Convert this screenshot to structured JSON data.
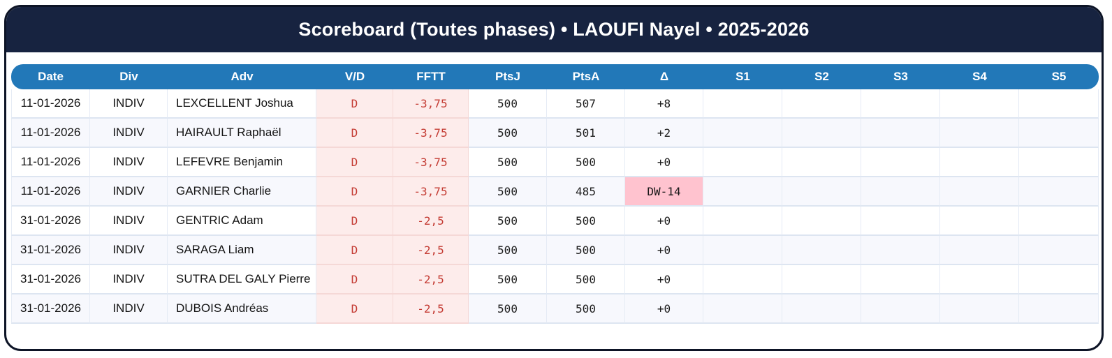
{
  "title": "Scoreboard (Toutes phases) • LAOUFI Nayel • 2025-2026",
  "table": {
    "columns": [
      "Date",
      "Div",
      "Adv",
      "V/D",
      "FFTT",
      "PtsJ",
      "PtsA",
      "Δ",
      "S1",
      "S2",
      "S3",
      "S4",
      "S5"
    ],
    "rows": [
      {
        "date": "11-01-2026",
        "div": "INDIV",
        "adv": "LEXCELLENT Joshua",
        "vd": "D",
        "fftt": "-3,75",
        "ptsj": "500",
        "ptsa": "507",
        "delta": "+8",
        "delta_highlight": false,
        "s1": "",
        "s2": "",
        "s3": "",
        "s4": "",
        "s5": ""
      },
      {
        "date": "11-01-2026",
        "div": "INDIV",
        "adv": "HAIRAULT Raphaël",
        "vd": "D",
        "fftt": "-3,75",
        "ptsj": "500",
        "ptsa": "501",
        "delta": "+2",
        "delta_highlight": false,
        "s1": "",
        "s2": "",
        "s3": "",
        "s4": "",
        "s5": ""
      },
      {
        "date": "11-01-2026",
        "div": "INDIV",
        "adv": "LEFEVRE Benjamin",
        "vd": "D",
        "fftt": "-3,75",
        "ptsj": "500",
        "ptsa": "500",
        "delta": "+0",
        "delta_highlight": false,
        "s1": "",
        "s2": "",
        "s3": "",
        "s4": "",
        "s5": ""
      },
      {
        "date": "11-01-2026",
        "div": "INDIV",
        "adv": "GARNIER Charlie",
        "vd": "D",
        "fftt": "-3,75",
        "ptsj": "500",
        "ptsa": "485",
        "delta": "DW-14",
        "delta_highlight": true,
        "s1": "",
        "s2": "",
        "s3": "",
        "s4": "",
        "s5": ""
      },
      {
        "date": "31-01-2026",
        "div": "INDIV",
        "adv": "GENTRIC Adam",
        "vd": "D",
        "fftt": "-2,5",
        "ptsj": "500",
        "ptsa": "500",
        "delta": "+0",
        "delta_highlight": false,
        "s1": "",
        "s2": "",
        "s3": "",
        "s4": "",
        "s5": ""
      },
      {
        "date": "31-01-2026",
        "div": "INDIV",
        "adv": "SARAGA Liam",
        "vd": "D",
        "fftt": "-2,5",
        "ptsj": "500",
        "ptsa": "500",
        "delta": "+0",
        "delta_highlight": false,
        "s1": "",
        "s2": "",
        "s3": "",
        "s4": "",
        "s5": ""
      },
      {
        "date": "31-01-2026",
        "div": "INDIV",
        "adv": "SUTRA DEL GALY Pierre",
        "vd": "D",
        "fftt": "-2,5",
        "ptsj": "500",
        "ptsa": "500",
        "delta": "+0",
        "delta_highlight": false,
        "s1": "",
        "s2": "",
        "s3": "",
        "s4": "",
        "s5": ""
      },
      {
        "date": "31-01-2026",
        "div": "INDIV",
        "adv": "DUBOIS Andréas",
        "vd": "D",
        "fftt": "-2,5",
        "ptsj": "500",
        "ptsa": "500",
        "delta": "+0",
        "delta_highlight": false,
        "s1": "",
        "s2": "",
        "s3": "",
        "s4": "",
        "s5": ""
      }
    ]
  },
  "colors": {
    "header_navy": "#172340",
    "card_border": "#0d1426",
    "table_header_blue": "#2278b8",
    "loss_cell_bg": "#fdeceb",
    "loss_text_red": "#c43b33",
    "delta_warning_bg": "#ffc3cf",
    "alt_row_bg": "#f7f8fd"
  }
}
